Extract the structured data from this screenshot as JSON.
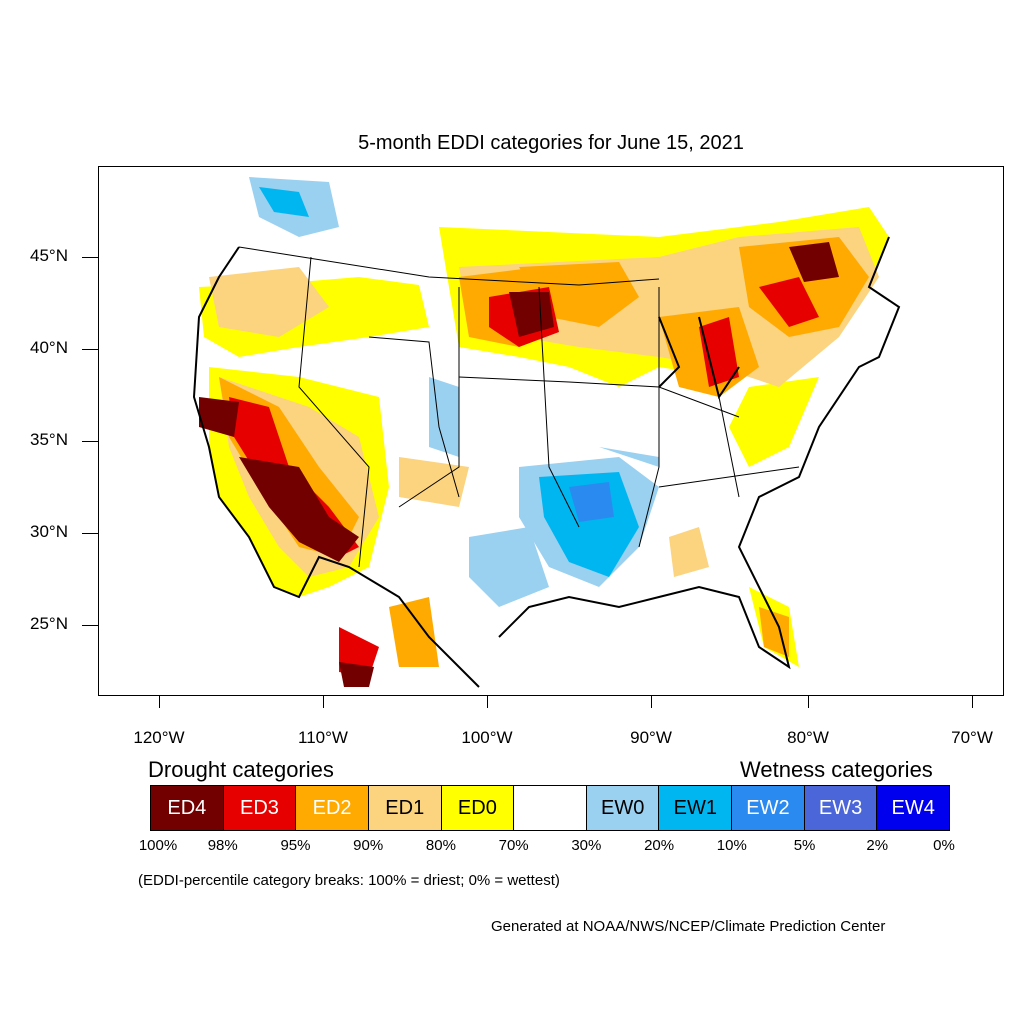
{
  "title": "5-month EDDI categories for June 15, 2021",
  "axes": {
    "y_labels": [
      "45°N",
      "40°N",
      "35°N",
      "30°N",
      "25°N"
    ],
    "x_labels": [
      "120°W",
      "110°W",
      "100°W",
      "90°W",
      "80°W",
      "70°W"
    ]
  },
  "legend": {
    "drought_heading": "Drought categories",
    "wetness_heading": "Wetness categories",
    "categories": [
      {
        "label": "ED4",
        "color": "#730000",
        "text_color": "#ffffff"
      },
      {
        "label": "ED3",
        "color": "#e60000",
        "text_color": "#ffffff"
      },
      {
        "label": "ED2",
        "color": "#ffaa00",
        "text_color": "#ffffff"
      },
      {
        "label": "ED1",
        "color": "#fcd37f",
        "text_color": "#000000"
      },
      {
        "label": "ED0",
        "color": "#ffff00",
        "text_color": "#000000"
      },
      {
        "label": "",
        "color": "#ffffff",
        "text_color": "#000000"
      },
      {
        "label": "EW0",
        "color": "#9ad0f0",
        "text_color": "#000000"
      },
      {
        "label": "EW1",
        "color": "#00b6f0",
        "text_color": "#000000"
      },
      {
        "label": "EW2",
        "color": "#2a8af0",
        "text_color": "#ffffff"
      },
      {
        "label": "EW3",
        "color": "#4a66d8",
        "text_color": "#ffffff"
      },
      {
        "label": "EW4",
        "color": "#0000ee",
        "text_color": "#ffffff"
      }
    ],
    "percentiles": [
      "100%",
      "98%",
      "95%",
      "90%",
      "80%",
      "70%",
      "30%",
      "20%",
      "10%",
      "5%",
      "2%",
      "0%"
    ]
  },
  "note": "(EDDI-percentile category breaks: 100% = driest; 0% = wettest)",
  "credit": "Generated at NOAA/NWS/NCEP/Climate Prediction Center"
}
